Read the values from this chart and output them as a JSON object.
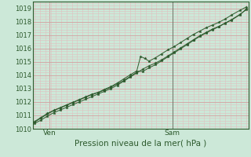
{
  "title": "",
  "xlabel": "Pression niveau de la mer( hPa )",
  "ylabel": "",
  "bg_color": "#cce8d8",
  "grid_major_color": "#d4a0a0",
  "grid_minor_color": "#e0c0c0",
  "line_color": "#2d5a2d",
  "marker_color": "#2d5a2d",
  "x_tick_labels": [
    "Ven",
    "Sam"
  ],
  "x_tick_positions": [
    0.07,
    0.65
  ],
  "ylim": [
    1010.0,
    1019.5
  ],
  "yticks": [
    1010,
    1011,
    1012,
    1013,
    1014,
    1015,
    1016,
    1017,
    1018,
    1019
  ],
  "figsize": [
    3.2,
    2.0
  ],
  "dpi": 100,
  "vline_x": 0.65,
  "vline_color": "#607060",
  "line1_x": [
    0.0,
    0.03,
    0.06,
    0.09,
    0.12,
    0.15,
    0.18,
    0.21,
    0.24,
    0.27,
    0.3,
    0.33,
    0.36,
    0.39,
    0.42,
    0.45,
    0.48,
    0.5,
    0.52,
    0.54,
    0.57,
    0.6,
    0.63,
    0.66,
    0.69,
    0.72,
    0.75,
    0.78,
    0.81,
    0.84,
    0.87,
    0.9,
    0.93,
    0.97,
    1.0
  ],
  "line1_y": [
    1010.5,
    1010.8,
    1011.1,
    1011.35,
    1011.55,
    1011.75,
    1011.95,
    1012.15,
    1012.35,
    1012.55,
    1012.7,
    1012.9,
    1013.1,
    1013.35,
    1013.6,
    1013.9,
    1014.2,
    1015.4,
    1015.25,
    1015.05,
    1015.3,
    1015.6,
    1015.9,
    1016.15,
    1016.45,
    1016.75,
    1017.05,
    1017.3,
    1017.55,
    1017.75,
    1017.95,
    1018.2,
    1018.5,
    1018.85,
    1019.1
  ],
  "line2_x": [
    0.0,
    0.03,
    0.06,
    0.09,
    0.12,
    0.15,
    0.18,
    0.21,
    0.24,
    0.27,
    0.3,
    0.33,
    0.36,
    0.39,
    0.42,
    0.45,
    0.48,
    0.51,
    0.54,
    0.57,
    0.6,
    0.63,
    0.66,
    0.69,
    0.72,
    0.75,
    0.78,
    0.81,
    0.84,
    0.87,
    0.9,
    0.93,
    0.97,
    1.0
  ],
  "line2_y": [
    1010.4,
    1010.65,
    1010.95,
    1011.2,
    1011.4,
    1011.6,
    1011.8,
    1012.0,
    1012.2,
    1012.4,
    1012.6,
    1012.8,
    1013.0,
    1013.25,
    1013.55,
    1013.85,
    1014.15,
    1014.45,
    1014.7,
    1014.9,
    1015.15,
    1015.45,
    1015.75,
    1016.05,
    1016.35,
    1016.65,
    1016.95,
    1017.2,
    1017.45,
    1017.65,
    1017.9,
    1018.15,
    1018.55,
    1018.9
  ],
  "line3_x": [
    0.0,
    0.03,
    0.06,
    0.09,
    0.12,
    0.15,
    0.18,
    0.21,
    0.24,
    0.27,
    0.3,
    0.33,
    0.36,
    0.39,
    0.42,
    0.45,
    0.48,
    0.51,
    0.54,
    0.57,
    0.6,
    0.63,
    0.66,
    0.69,
    0.72,
    0.75,
    0.78,
    0.81,
    0.84,
    0.87,
    0.9,
    0.93,
    0.97,
    1.0
  ],
  "line3_y": [
    1010.55,
    1010.85,
    1011.15,
    1011.38,
    1011.58,
    1011.78,
    1011.98,
    1012.18,
    1012.38,
    1012.58,
    1012.72,
    1012.95,
    1013.15,
    1013.42,
    1013.72,
    1014.02,
    1014.3,
    1014.28,
    1014.55,
    1014.78,
    1015.08,
    1015.38,
    1015.68,
    1015.98,
    1016.28,
    1016.6,
    1016.9,
    1017.15,
    1017.4,
    1017.62,
    1017.88,
    1018.12,
    1018.52,
    1018.95
  ]
}
